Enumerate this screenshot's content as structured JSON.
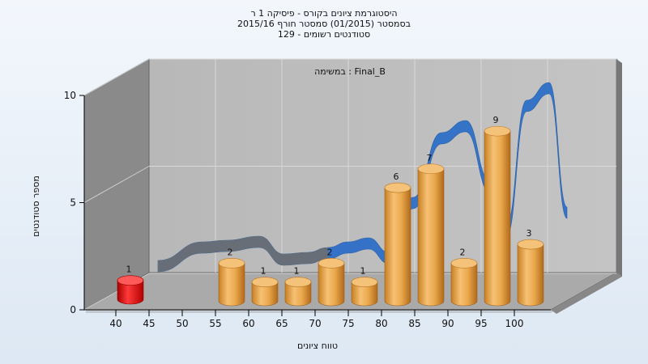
{
  "titles": {
    "line1": "היסטוגרמת ציונים בקורס - פיסיקה 1 ר",
    "line2": "בסמסטר  (01/2015)  סמסטר חורף 2015/16",
    "line3": "סטודנטים רשומים - 129"
  },
  "chart_data": {
    "type": "bar",
    "title": "היסטוגרמת ציונים בקורס - פיסיקה 1 ר",
    "subtitle": "בסמסטר  (01/2015)  סמסטר חורף 2015/16 / סטודנטים רשומים - 129",
    "annotation": "במשימה : Final_B",
    "xlabel": "טווח ציונים",
    "ylabel": "מספר סטודנטים",
    "ylim": [
      0,
      10
    ],
    "yticks": [
      0,
      5,
      10
    ],
    "categories": [
      "40",
      "45",
      "50",
      "55",
      "60",
      "65",
      "70",
      "75",
      "80",
      "85",
      "90",
      "95",
      "100"
    ],
    "bars": [
      {
        "x": "40",
        "value": 1,
        "color": "#e01010"
      },
      {
        "x": "55",
        "value": 2,
        "color": "#e8a040"
      },
      {
        "x": "60",
        "value": 1,
        "color": "#e8a040"
      },
      {
        "x": "65",
        "value": 1,
        "color": "#e8a040"
      },
      {
        "x": "70",
        "value": 2,
        "color": "#e8a040"
      },
      {
        "x": "75",
        "value": 1,
        "color": "#e8a040"
      },
      {
        "x": "80",
        "value": 6,
        "color": "#e8a040"
      },
      {
        "x": "85",
        "value": 7,
        "color": "#e8a040"
      },
      {
        "x": "90",
        "value": 2,
        "color": "#e8a040"
      },
      {
        "x": "95",
        "value": 9,
        "color": "#e8a040"
      },
      {
        "x": "100",
        "value": 3,
        "color": "#e8a040"
      }
    ],
    "trend_color": "#2e6fc8",
    "grid": true,
    "legend": "none"
  }
}
